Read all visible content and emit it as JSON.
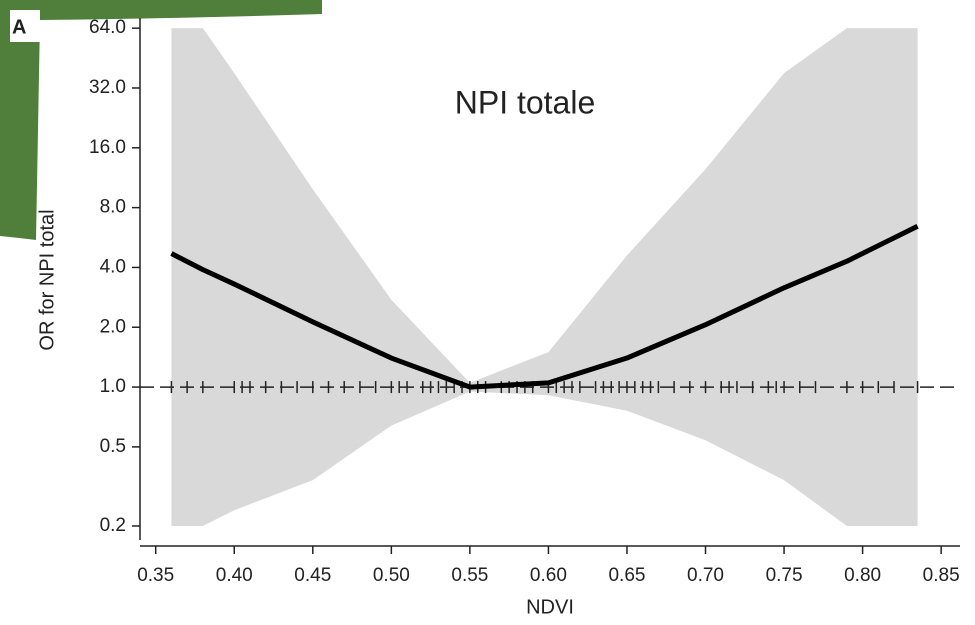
{
  "chart_data": {
    "type": "line",
    "panel_label": "A",
    "title": "NPI totale",
    "x_label": "NDVI",
    "y_label": "OR for NPI total",
    "log_y": true,
    "grid": false,
    "x": [
      0.36,
      0.38,
      0.4,
      0.45,
      0.5,
      0.55,
      0.6,
      0.65,
      0.7,
      0.75,
      0.79,
      0.835
    ],
    "series": [
      {
        "color": "#000000",
        "values": [
          4.7,
          3.9,
          3.3,
          2.13,
          1.4,
          1.0,
          1.05,
          1.4,
          2.06,
          3.16,
          4.3,
          6.45
        ]
      }
    ],
    "band": {
      "color": "#d9d9d9",
      "upper": [
        64,
        64,
        38,
        9.9,
        2.75,
        1.05,
        1.5,
        4.6,
        12.5,
        38,
        64,
        64
      ],
      "lower": [
        0.2,
        0.2,
        0.24,
        0.34,
        0.64,
        0.95,
        0.91,
        0.76,
        0.54,
        0.34,
        0.2,
        0.2
      ]
    },
    "hline": 1,
    "rug": [
      0.36,
      0.37,
      0.38,
      0.4,
      0.405,
      0.41,
      0.42,
      0.43,
      0.44,
      0.45,
      0.46,
      0.47,
      0.48,
      0.49,
      0.5,
      0.505,
      0.51,
      0.52,
      0.525,
      0.53,
      0.535,
      0.54,
      0.545,
      0.55,
      0.555,
      0.56,
      0.57,
      0.575,
      0.58,
      0.585,
      0.59,
      0.6,
      0.605,
      0.61,
      0.615,
      0.62,
      0.63,
      0.635,
      0.64,
      0.645,
      0.65,
      0.655,
      0.66,
      0.665,
      0.67,
      0.68,
      0.69,
      0.7,
      0.71,
      0.715,
      0.72,
      0.73,
      0.74,
      0.745,
      0.75,
      0.76,
      0.77,
      0.79,
      0.8,
      0.81,
      0.82,
      0.835
    ],
    "xlim": [
      0.34,
      0.862
    ],
    "xticks": [
      0.35,
      {
        "value": 0.4,
        "label": "0.40"
      },
      0.45,
      {
        "value": 0.5,
        "label": "0.50"
      },
      0.55,
      {
        "value": 0.6,
        "label": "0.60"
      },
      0.65,
      {
        "value": 0.7,
        "label": "0.70"
      },
      0.75,
      {
        "value": 0.8,
        "label": "0.80"
      },
      0.85
    ],
    "ylim": [
      0.17,
      72
    ],
    "yticks": [
      0.2,
      0.5,
      {
        "value": 1,
        "label": "1.0"
      },
      {
        "value": 2,
        "label": "2.0"
      },
      {
        "value": 4,
        "label": "4.0"
      },
      {
        "value": 8,
        "label": "8.0"
      },
      {
        "value": 16,
        "label": "16.0"
      },
      {
        "value": 32,
        "label": "32.0"
      },
      {
        "value": 64,
        "label": "64.0"
      }
    ]
  }
}
